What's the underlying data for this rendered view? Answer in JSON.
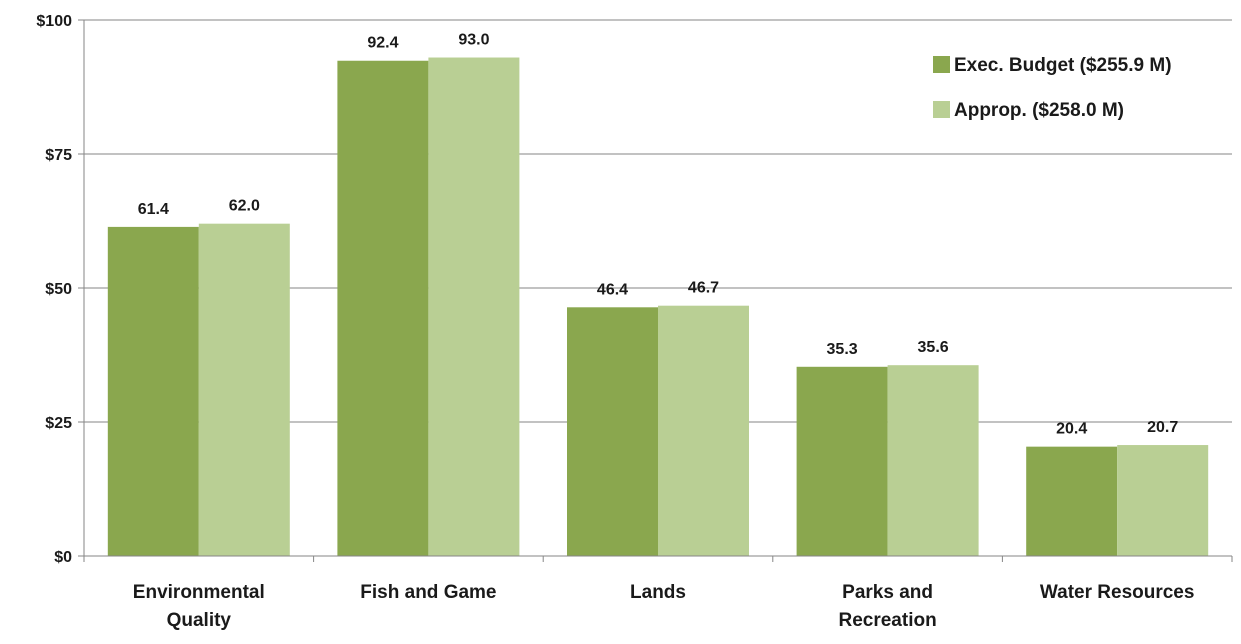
{
  "chart_data": {
    "type": "bar",
    "title": "",
    "xlabel": "",
    "ylabel": "",
    "ylim": [
      0,
      100
    ],
    "y_ticks": [
      {
        "value": 0,
        "label": "$0"
      },
      {
        "value": 25,
        "label": "$25"
      },
      {
        "value": 50,
        "label": "$50"
      },
      {
        "value": 75,
        "label": "$75"
      },
      {
        "value": 100,
        "label": "$100"
      }
    ],
    "grid": true,
    "legend_position": "top-right",
    "categories": [
      [
        "Environmental",
        "Quality"
      ],
      [
        "Fish and Game"
      ],
      [
        "Lands"
      ],
      [
        "Parks and",
        "Recreation"
      ],
      [
        "Water Resources"
      ]
    ],
    "series": [
      {
        "name": "Exec. Budget ($255.9 M)",
        "color": "#8aa74e",
        "values": [
          61.4,
          92.4,
          46.4,
          35.3,
          20.4
        ],
        "labels": [
          "61.4",
          "92.4",
          "46.4",
          "35.3",
          "20.4"
        ]
      },
      {
        "name": "Approp. ($258.0 M)",
        "color": "#b9cf94",
        "values": [
          62.0,
          93.0,
          46.7,
          35.6,
          20.7
        ],
        "labels": [
          "62.0",
          "93.0",
          "46.7",
          "35.6",
          "20.7"
        ]
      }
    ],
    "gridline_color": "#868686",
    "axis_color": "#868686"
  }
}
